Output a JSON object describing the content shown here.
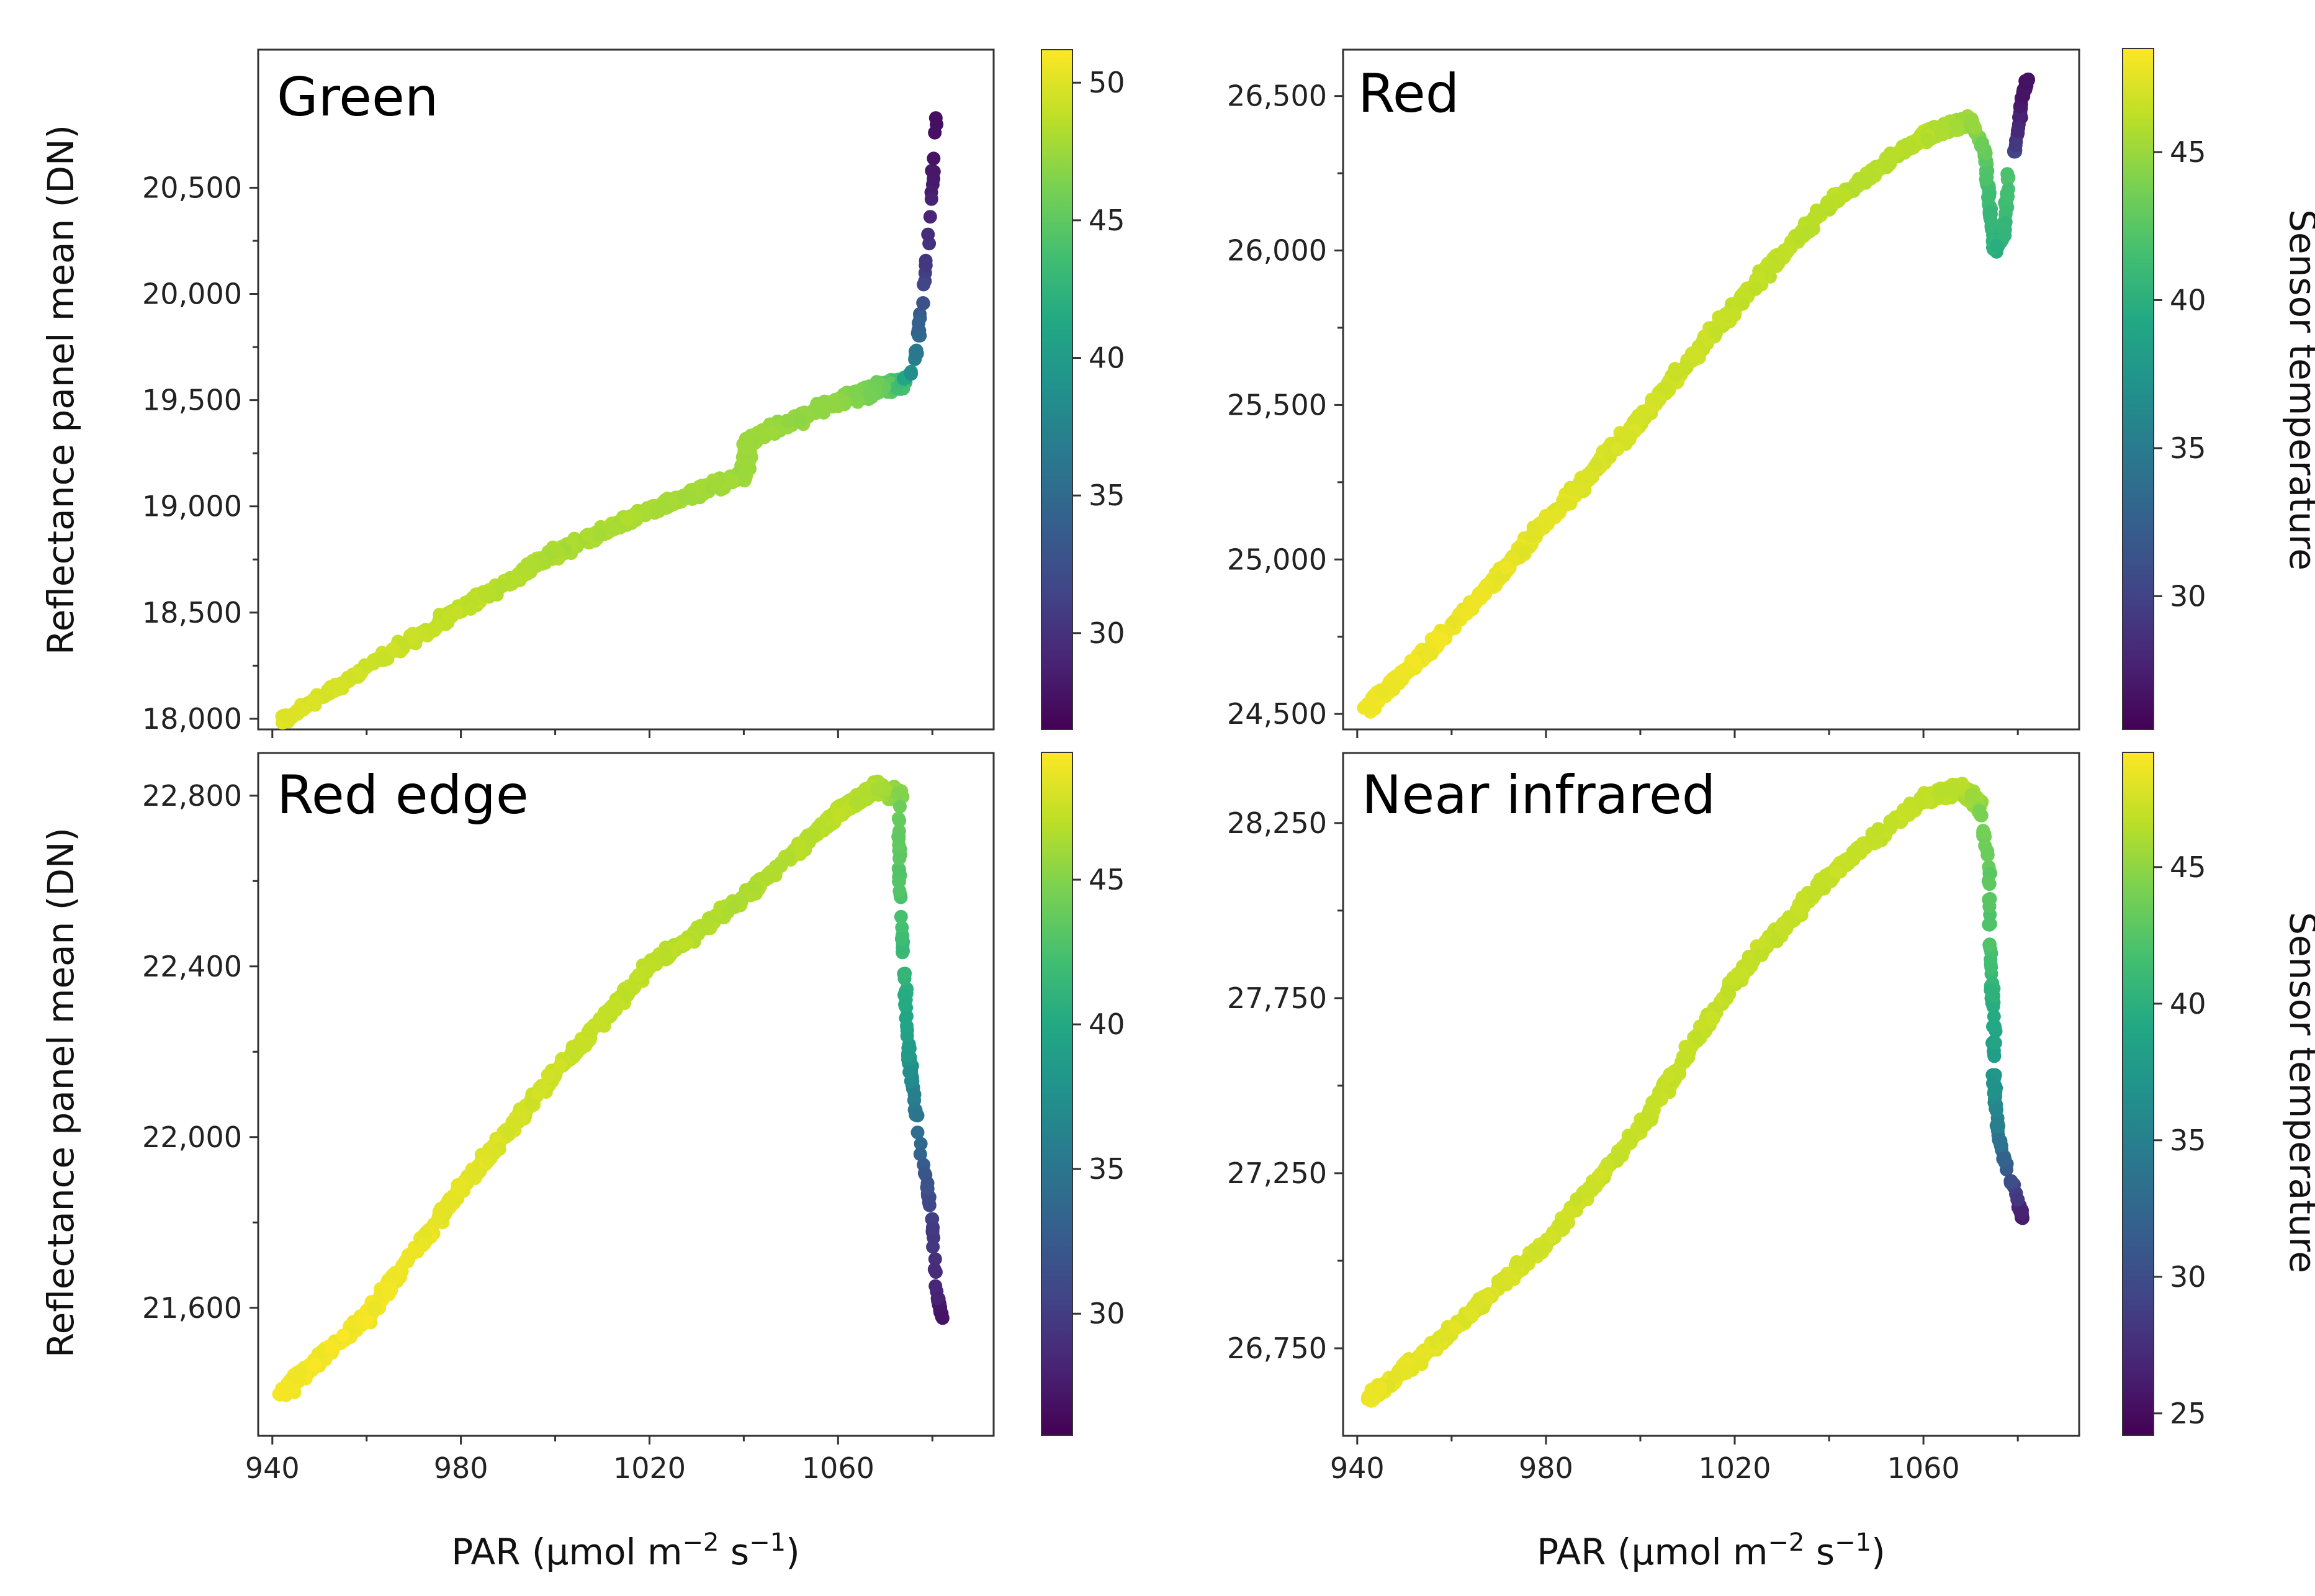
{
  "figure": {
    "ylabel": "Reflectance panel mean (DN)",
    "xlabel_main": "PAR (μmol m",
    "xlabel_exp1": "−2",
    "xlabel_mid": " s",
    "xlabel_exp2": "−1",
    "xlabel_end": ")",
    "colorbar_label": "Sensor temperature"
  },
  "chart_data": [
    {
      "type": "scatter",
      "title": "Green",
      "xlim": [
        937,
        1093
      ],
      "ylim": [
        17950,
        21150
      ],
      "xticks": [
        940,
        980,
        1020,
        1060
      ],
      "xtick_labels": [
        "940",
        "980",
        "1020",
        "1060"
      ],
      "yticks": [
        18000,
        18500,
        19000,
        19500,
        20000,
        20500
      ],
      "ytick_labels": [
        "18,000",
        "18,500",
        "19,000",
        "19,500",
        "20,000",
        "20,500"
      ],
      "color_range": [
        26.5,
        51.2
      ],
      "colorbar_ticks": [
        30,
        35,
        40,
        45,
        50
      ],
      "colorbar_tick_labels": [
        "30",
        "35",
        "40",
        "45",
        "50"
      ],
      "trend": [
        [
          942,
          17990,
          50
        ],
        [
          975,
          18450,
          49
        ],
        [
          1000,
          18780,
          48
        ],
        [
          1020,
          18980,
          48
        ],
        [
          1040,
          19150,
          47.5
        ],
        [
          1041,
          19310,
          47.5
        ],
        [
          1060,
          19500,
          47
        ],
        [
          1070,
          19560,
          45.5
        ],
        [
          1074,
          19580,
          43
        ]
      ],
      "spike": [
        [
          1074,
          19590,
          41
        ],
        [
          1076,
          19640,
          38
        ],
        [
          1077,
          19800,
          35
        ],
        [
          1078,
          20000,
          32
        ],
        [
          1079,
          20200,
          30
        ],
        [
          1080,
          20500,
          28.5
        ],
        [
          1081,
          20880,
          27
        ]
      ],
      "points": [
        [
          942,
          17995
        ],
        [
          950,
          18090
        ],
        [
          960,
          18210
        ],
        [
          970,
          18350
        ],
        [
          980,
          18500
        ],
        [
          990,
          18640
        ],
        [
          1000,
          18790
        ],
        [
          1010,
          18900
        ],
        [
          1020,
          18990
        ],
        [
          1030,
          19080
        ],
        [
          1040,
          19160
        ],
        [
          1045,
          19350
        ],
        [
          1055,
          19460
        ],
        [
          1065,
          19540
        ],
        [
          1072,
          19580
        ],
        [
          1077,
          19700
        ],
        [
          1078,
          19950
        ],
        [
          1079,
          20220
        ],
        [
          1080,
          20550
        ],
        [
          1081,
          20850
        ]
      ]
    },
    {
      "type": "scatter",
      "title": "Red",
      "xlim": [
        937,
        1093
      ],
      "ylim": [
        24450,
        26650
      ],
      "xticks": [
        940,
        980,
        1020,
        1060
      ],
      "xtick_labels": [
        "940",
        "980",
        "1020",
        "1060"
      ],
      "yticks": [
        24500,
        25000,
        25500,
        26000,
        26500
      ],
      "ytick_labels": [
        "24,500",
        "25,000",
        "25,500",
        "26,000",
        "26,500"
      ],
      "color_range": [
        25.5,
        48.5
      ],
      "colorbar_ticks": [
        30,
        35,
        40,
        45
      ],
      "colorbar_tick_labels": [
        "30",
        "35",
        "40",
        "45"
      ],
      "trend": [
        [
          942,
          24520,
          48
        ],
        [
          960,
          24780,
          48
        ],
        [
          980,
          25120,
          47.5
        ],
        [
          1000,
          25450,
          47
        ],
        [
          1020,
          25820,
          46.5
        ],
        [
          1040,
          26150,
          46
        ],
        [
          1060,
          26370,
          46
        ],
        [
          1070,
          26420,
          45
        ]
      ],
      "hook": [
        [
          1070,
          26420,
          45
        ],
        [
          1073,
          26320,
          43
        ],
        [
          1074,
          26150,
          41
        ],
        [
          1075,
          26000,
          40
        ],
        [
          1077,
          26050,
          40.5
        ],
        [
          1078,
          26250,
          42
        ]
      ],
      "spike": [
        [
          1079,
          26300,
          31
        ],
        [
          1080,
          26380,
          28
        ],
        [
          1081,
          26500,
          27
        ],
        [
          1082,
          26560,
          26.5
        ]
      ],
      "points": [
        [
          942,
          24520
        ],
        [
          960,
          24790
        ],
        [
          980,
          25110
        ],
        [
          1000,
          25460
        ],
        [
          1020,
          25830
        ],
        [
          1040,
          26150
        ],
        [
          1060,
          26370
        ],
        [
          1070,
          26420
        ],
        [
          1075,
          26000
        ],
        [
          1082,
          26560
        ]
      ]
    },
    {
      "type": "scatter",
      "title": "Red edge",
      "xlim": [
        937,
        1093
      ],
      "ylim": [
        21300,
        22900
      ],
      "xticks": [
        940,
        980,
        1020,
        1060
      ],
      "xtick_labels": [
        "940",
        "980",
        "1020",
        "1060"
      ],
      "yticks": [
        21600,
        22000,
        22400,
        22800
      ],
      "ytick_labels": [
        "21,600",
        "22,000",
        "22,400",
        "22,800"
      ],
      "color_range": [
        25.8,
        49.4
      ],
      "colorbar_ticks": [
        30,
        35,
        40,
        45
      ],
      "colorbar_tick_labels": [
        "30",
        "35",
        "40",
        "45"
      ],
      "trend": [
        [
          942,
          21400,
          49
        ],
        [
          960,
          21580,
          49
        ],
        [
          980,
          21880,
          48.5
        ],
        [
          1000,
          22150,
          47.5
        ],
        [
          1020,
          22400,
          47
        ],
        [
          1040,
          22560,
          46.5
        ],
        [
          1060,
          22760,
          47
        ],
        [
          1068,
          22820,
          46.5
        ],
        [
          1073,
          22800,
          45
        ]
      ],
      "tail": [
        [
          1073,
          22780,
          44
        ],
        [
          1073,
          22600,
          43
        ],
        [
          1074,
          22400,
          41.5
        ],
        [
          1075,
          22200,
          38.5
        ],
        [
          1076,
          22100,
          36
        ],
        [
          1078,
          21950,
          33
        ],
        [
          1080,
          21800,
          30
        ],
        [
          1081,
          21620,
          28
        ],
        [
          1082,
          21580,
          27
        ]
      ],
      "points": [
        [
          942,
          21400
        ],
        [
          960,
          21580
        ],
        [
          980,
          21880
        ],
        [
          1000,
          22150
        ],
        [
          1020,
          22400
        ],
        [
          1040,
          22560
        ],
        [
          1060,
          22760
        ],
        [
          1068,
          22820
        ],
        [
          1074,
          22400
        ],
        [
          1078,
          21950
        ],
        [
          1082,
          21580
        ]
      ]
    },
    {
      "type": "scatter",
      "title": "Near infrared",
      "xlim": [
        937,
        1093
      ],
      "ylim": [
        26500,
        28450
      ],
      "xticks": [
        940,
        980,
        1020,
        1060
      ],
      "xtick_labels": [
        "940",
        "980",
        "1020",
        "1060"
      ],
      "yticks": [
        26750,
        27250,
        27750,
        28250
      ],
      "ytick_labels": [
        "26,750",
        "27,250",
        "27,750",
        "28,250"
      ],
      "color_range": [
        24.2,
        49.2
      ],
      "colorbar_ticks": [
        25,
        30,
        35,
        40,
        45
      ],
      "colorbar_tick_labels": [
        "25",
        "30",
        "35",
        "40",
        "45"
      ],
      "trend": [
        [
          942,
          26600,
          48.5
        ],
        [
          960,
          26800,
          48
        ],
        [
          980,
          27050,
          47.5
        ],
        [
          1000,
          27380,
          47
        ],
        [
          1020,
          27800,
          47
        ],
        [
          1040,
          28100,
          47
        ],
        [
          1060,
          28320,
          47
        ],
        [
          1068,
          28350,
          46.5
        ],
        [
          1072,
          28300,
          45
        ]
      ],
      "tail": [
        [
          1072,
          28300,
          44.5
        ],
        [
          1074,
          28100,
          43
        ],
        [
          1074,
          27900,
          42
        ],
        [
          1075,
          27700,
          39.5
        ],
        [
          1075,
          27500,
          37
        ],
        [
          1076,
          27350,
          34
        ],
        [
          1078,
          27250,
          31
        ],
        [
          1080,
          27180,
          28
        ],
        [
          1081,
          27120,
          26
        ]
      ],
      "points": [
        [
          942,
          26600
        ],
        [
          960,
          26800
        ],
        [
          980,
          27050
        ],
        [
          1000,
          27380
        ],
        [
          1020,
          27800
        ],
        [
          1040,
          28100
        ],
        [
          1060,
          28320
        ],
        [
          1068,
          28350
        ],
        [
          1075,
          27700
        ],
        [
          1078,
          27250
        ],
        [
          1081,
          27120
        ]
      ]
    }
  ]
}
